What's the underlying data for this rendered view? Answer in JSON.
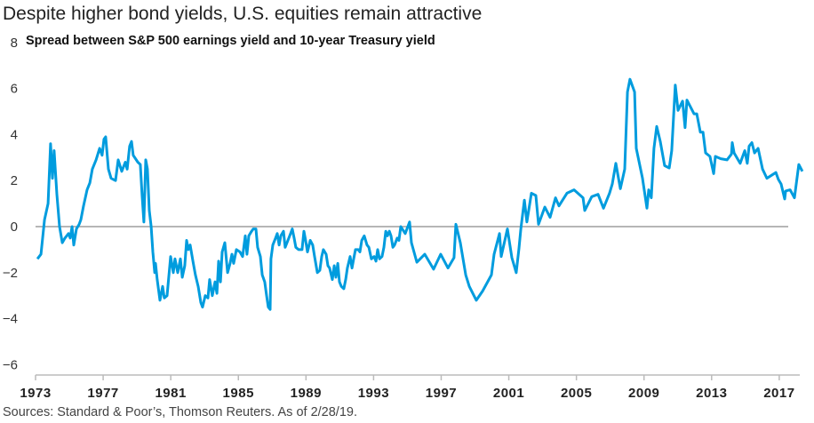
{
  "title": "Despite higher bond yields, U.S. equities remain attractive",
  "source": "Sources: Standard & Poor’s, Thomson Reuters. As of 2/28/19.",
  "colors": {
    "line": "#009cde",
    "zero_line": "#8a8a8a",
    "axis": "#bbbbbb"
  },
  "chart_data": {
    "type": "line",
    "title": "Spread between S&P 500 earnings yield and 10-year Treasury yield",
    "xlabel": "",
    "ylabel": "",
    "xlim": [
      1973,
      2019.2
    ],
    "ylim": [
      -6,
      8
    ],
    "x_ticks": [
      1973,
      1977,
      1981,
      1985,
      1989,
      1993,
      1997,
      2001,
      2005,
      2009,
      2013,
      2017
    ],
    "x_tick_labels": [
      "1973",
      "1977",
      "1981",
      "1985",
      "1989",
      "1993",
      "1997",
      "2001",
      "2005",
      "2009",
      "2013",
      "2017"
    ],
    "y_ticks": [
      8,
      6,
      4,
      2,
      0,
      -2,
      -4,
      -6
    ],
    "y_tick_labels": [
      "8",
      "6",
      "4",
      "2",
      "0",
      "−2",
      "−4",
      "−6"
    ],
    "reference_line": 0,
    "grid": false,
    "series": [
      {
        "name": "Spread",
        "x": [
          1973.11,
          1973.32,
          1973.53,
          1973.74,
          1973.89,
          1974.0,
          1974.1,
          1974.26,
          1974.42,
          1974.58,
          1974.74,
          1974.95,
          1975.05,
          1975.16,
          1975.26,
          1975.42,
          1975.58,
          1975.68,
          1975.84,
          1976.05,
          1976.21,
          1976.36,
          1976.58,
          1976.79,
          1976.94,
          1977.05,
          1977.15,
          1977.31,
          1977.47,
          1977.73,
          1977.89,
          1978.1,
          1978.31,
          1978.42,
          1978.57,
          1978.68,
          1978.78,
          1979.05,
          1979.2,
          1979.31,
          1979.41,
          1979.52,
          1979.62,
          1979.73,
          1979.84,
          1979.94,
          1980.05,
          1980.1,
          1980.2,
          1980.36,
          1980.52,
          1980.62,
          1980.78,
          1980.99,
          1981.15,
          1981.25,
          1981.41,
          1981.57,
          1981.68,
          1981.83,
          1981.94,
          1982.04,
          1982.15,
          1982.31,
          1982.46,
          1982.62,
          1982.78,
          1982.88,
          1983.04,
          1983.2,
          1983.3,
          1983.46,
          1983.62,
          1983.73,
          1983.83,
          1983.94,
          1984.04,
          1984.2,
          1984.36,
          1984.51,
          1984.62,
          1984.72,
          1984.88,
          1985.09,
          1985.25,
          1985.41,
          1985.51,
          1985.62,
          1985.78,
          1985.88,
          1986.04,
          1986.14,
          1986.3,
          1986.41,
          1986.56,
          1986.67,
          1986.77,
          1986.88,
          1986.93,
          1987.04,
          1987.2,
          1987.3,
          1987.41,
          1987.51,
          1987.67,
          1987.77,
          1987.93,
          1988.09,
          1988.19,
          1988.3,
          1988.4,
          1988.56,
          1988.77,
          1988.88,
          1988.98,
          1989.09,
          1989.25,
          1989.4,
          1989.51,
          1989.67,
          1989.82,
          1989.93,
          1990.03,
          1990.19,
          1990.3,
          1990.4,
          1990.56,
          1990.67,
          1990.77,
          1990.88,
          1990.98,
          1991.09,
          1991.24,
          1991.35,
          1991.45,
          1991.61,
          1991.72,
          1991.82,
          1991.93,
          1992.09,
          1992.19,
          1992.3,
          1992.45,
          1992.61,
          1992.72,
          1992.87,
          1993.03,
          1993.14,
          1993.24,
          1993.35,
          1993.5,
          1993.61,
          1993.72,
          1993.82,
          1993.93,
          1994.03,
          1994.14,
          1994.24,
          1994.4,
          1994.5,
          1994.61,
          1994.87,
          1995.13,
          1995.24,
          1995.56,
          1996.03,
          1996.55,
          1996.97,
          1997.4,
          1997.76,
          1997.87,
          1998.13,
          1998.45,
          1998.66,
          1999.08,
          1999.45,
          1999.97,
          2000.13,
          2000.45,
          2000.55,
          2000.92,
          2001.18,
          2001.44,
          2001.6,
          2001.71,
          2001.92,
          2002.07,
          2002.34,
          2002.6,
          2002.76,
          2003.13,
          2003.44,
          2003.76,
          2003.97,
          2004.44,
          2004.86,
          2005.39,
          2005.49,
          2005.91,
          2006.28,
          2006.6,
          2006.96,
          2007.12,
          2007.33,
          2007.6,
          2007.86,
          2008.02,
          2008.17,
          2008.44,
          2008.54,
          2008.91,
          2009.17,
          2009.28,
          2009.43,
          2009.59,
          2009.75,
          2009.96,
          2010.22,
          2010.49,
          2010.64,
          2010.85,
          2011.01,
          2011.28,
          2011.43,
          2011.54,
          2011.96,
          2012.12,
          2012.33,
          2012.49,
          2012.64,
          2012.9,
          2013.12,
          2013.22,
          2013.54,
          2013.91,
          2014.17,
          2014.22,
          2014.33,
          2014.69,
          2014.96,
          2015.11,
          2015.22,
          2015.38,
          2015.54,
          2015.75,
          2016.01,
          2016.27,
          2016.59,
          2016.8,
          2016.95,
          2017.11,
          2017.32,
          2017.38,
          2017.64,
          2017.9,
          2018.16,
          2018.37
        ],
        "y": [
          -1.4,
          -1.2,
          0.3,
          1.0,
          3.6,
          2.1,
          3.3,
          1.4,
          0.0,
          -0.7,
          -0.5,
          -0.3,
          -0.5,
          0.0,
          -0.8,
          -0.1,
          0.1,
          0.3,
          0.9,
          1.6,
          1.9,
          2.5,
          2.9,
          3.4,
          3.1,
          3.8,
          3.9,
          2.5,
          2.1,
          2.0,
          2.9,
          2.4,
          2.8,
          2.5,
          3.5,
          3.7,
          3.1,
          2.8,
          2.7,
          1.3,
          0.2,
          2.9,
          2.5,
          0.7,
          0.0,
          -1.1,
          -2.0,
          -1.6,
          -2.3,
          -3.2,
          -2.6,
          -3.1,
          -3.0,
          -1.3,
          -2.0,
          -1.4,
          -2.0,
          -1.4,
          -2.2,
          -1.7,
          -0.6,
          -1.0,
          -0.8,
          -1.5,
          -2.1,
          -2.6,
          -3.3,
          -3.5,
          -3.0,
          -3.1,
          -2.3,
          -3.0,
          -2.4,
          -2.9,
          -1.5,
          -2.4,
          -1.1,
          -0.7,
          -2.0,
          -1.6,
          -1.2,
          -1.6,
          -1.0,
          -1.1,
          -1.3,
          -0.4,
          -1.2,
          -0.4,
          -0.2,
          -0.1,
          -0.1,
          -0.9,
          -1.3,
          -2.1,
          -2.4,
          -3.0,
          -3.5,
          -3.6,
          -1.4,
          -0.8,
          -0.5,
          -0.3,
          -0.8,
          -0.4,
          -0.2,
          -0.9,
          -0.6,
          -0.3,
          -0.1,
          -0.5,
          -0.9,
          -1.0,
          -1.0,
          -0.2,
          -0.6,
          -1.1,
          -0.6,
          -0.8,
          -1.3,
          -2.0,
          -1.9,
          -1.3,
          -1.0,
          -1.2,
          -1.7,
          -1.8,
          -2.3,
          -1.7,
          -2.2,
          -1.6,
          -2.4,
          -2.6,
          -2.7,
          -2.3,
          -1.8,
          -1.3,
          -1.8,
          -1.4,
          -1.0,
          -1.0,
          -1.1,
          -0.6,
          -0.4,
          -0.8,
          -0.9,
          -1.4,
          -1.3,
          -1.5,
          -1.0,
          -1.4,
          -1.3,
          -0.9,
          -0.2,
          -0.4,
          -0.2,
          -0.4,
          -0.9,
          -0.8,
          -0.5,
          -0.6,
          0.0,
          -0.3,
          0.2,
          -0.7,
          -1.55,
          -1.2,
          -1.85,
          -1.2,
          -1.8,
          -1.35,
          0.1,
          -0.7,
          -2.1,
          -2.6,
          -3.2,
          -2.8,
          -2.1,
          -1.2,
          -0.3,
          -1.3,
          -0.1,
          -1.35,
          -2.0,
          -0.95,
          -0.1,
          1.15,
          0.2,
          1.45,
          1.35,
          0.1,
          0.85,
          0.4,
          1.25,
          0.9,
          1.45,
          1.6,
          1.25,
          0.7,
          1.3,
          1.4,
          0.8,
          1.45,
          1.85,
          2.75,
          1.65,
          2.5,
          5.85,
          6.4,
          5.85,
          3.4,
          2.1,
          0.8,
          1.6,
          1.25,
          3.4,
          4.35,
          3.7,
          2.65,
          2.55,
          3.3,
          6.15,
          5.05,
          5.45,
          4.3,
          5.5,
          4.9,
          4.9,
          4.1,
          4.1,
          3.2,
          3.05,
          2.3,
          3.05,
          2.95,
          2.9,
          3.15,
          3.65,
          3.2,
          2.75,
          3.3,
          2.75,
          3.5,
          3.65,
          3.2,
          3.4,
          2.5,
          2.1,
          2.25,
          2.35,
          2.05,
          1.85,
          1.2,
          1.55,
          1.6,
          1.25,
          2.7,
          2.4
        ]
      }
    ]
  }
}
